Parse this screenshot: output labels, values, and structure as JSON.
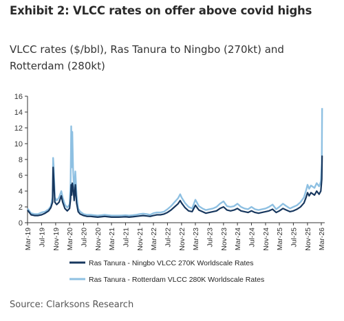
{
  "header": {
    "exhibit_title": "Exhibit 2: VLCC rates on offer above covid highs",
    "subtitle": "VLCC rates ($/bbl), Ras Tanura to Ningbo (270kt) and Rotterdam (280kt)"
  },
  "footer": {
    "source": "Source: Clarksons Research"
  },
  "chart_data": {
    "type": "line",
    "title": "",
    "xlabel": "",
    "ylabel": "",
    "ylim": [
      0,
      16
    ],
    "yticks": [
      0,
      2,
      4,
      6,
      8,
      10,
      12,
      14,
      16
    ],
    "xlim": [
      "2019-03-01",
      "2026-03-31"
    ],
    "x_tick_labels": [
      "Mar-19",
      "Jul-19",
      "Nov-19",
      "Mar-20",
      "Jul-20",
      "Nov-20",
      "Mar-21",
      "Jul-21",
      "Nov-21",
      "Mar-22",
      "Jul-22",
      "Nov-22",
      "Mar-23",
      "Jul-23",
      "Nov-23",
      "Mar-24",
      "Jul-24",
      "Nov-24",
      "Mar-25",
      "Jul-25",
      "Nov-25",
      "Mar-26"
    ],
    "grid": false,
    "legend_position": "bottom",
    "series": [
      {
        "name": "Ras Tanura - Ningbo VLCC 270K Worldscale Rates",
        "color": "#17375e",
        "points": [
          [
            "2019-03-01",
            1.6
          ],
          [
            "2019-04-01",
            1.0
          ],
          [
            "2019-05-01",
            0.9
          ],
          [
            "2019-06-01",
            0.9
          ],
          [
            "2019-07-01",
            1.0
          ],
          [
            "2019-08-01",
            1.2
          ],
          [
            "2019-09-01",
            1.5
          ],
          [
            "2019-09-20",
            1.9
          ],
          [
            "2019-10-05",
            2.6
          ],
          [
            "2019-10-10",
            7.0
          ],
          [
            "2019-10-15",
            5.5
          ],
          [
            "2019-10-25",
            2.6
          ],
          [
            "2019-11-10",
            2.3
          ],
          [
            "2019-12-01",
            2.6
          ],
          [
            "2019-12-20",
            3.4
          ],
          [
            "2020-01-01",
            2.6
          ],
          [
            "2020-01-20",
            1.8
          ],
          [
            "2020-02-10",
            1.5
          ],
          [
            "2020-03-01",
            1.8
          ],
          [
            "2020-03-10",
            3.0
          ],
          [
            "2020-03-15",
            4.8
          ],
          [
            "2020-03-20",
            3.5
          ],
          [
            "2020-03-25",
            5.0
          ],
          [
            "2020-04-01",
            4.5
          ],
          [
            "2020-04-10",
            2.8
          ],
          [
            "2020-04-20",
            4.8
          ],
          [
            "2020-05-01",
            2.5
          ],
          [
            "2020-05-15",
            1.4
          ],
          [
            "2020-06-01",
            1.1
          ],
          [
            "2020-07-01",
            0.9
          ],
          [
            "2020-08-01",
            0.8
          ],
          [
            "2020-09-01",
            0.8
          ],
          [
            "2020-10-01",
            0.75
          ],
          [
            "2020-11-01",
            0.7
          ],
          [
            "2020-12-01",
            0.75
          ],
          [
            "2021-01-01",
            0.8
          ],
          [
            "2021-02-01",
            0.75
          ],
          [
            "2021-03-01",
            0.7
          ],
          [
            "2021-04-01",
            0.7
          ],
          [
            "2021-05-01",
            0.7
          ],
          [
            "2021-06-01",
            0.72
          ],
          [
            "2021-07-01",
            0.75
          ],
          [
            "2021-08-01",
            0.7
          ],
          [
            "2021-09-01",
            0.75
          ],
          [
            "2021-10-01",
            0.8
          ],
          [
            "2021-11-01",
            0.85
          ],
          [
            "2021-12-01",
            0.9
          ],
          [
            "2022-01-01",
            0.85
          ],
          [
            "2022-02-01",
            0.8
          ],
          [
            "2022-03-01",
            0.9
          ],
          [
            "2022-04-01",
            1.0
          ],
          [
            "2022-05-01",
            1.0
          ],
          [
            "2022-06-01",
            1.1
          ],
          [
            "2022-07-01",
            1.3
          ],
          [
            "2022-08-01",
            1.6
          ],
          [
            "2022-09-01",
            2.0
          ],
          [
            "2022-10-01",
            2.4
          ],
          [
            "2022-10-20",
            2.8
          ],
          [
            "2022-11-01",
            2.5
          ],
          [
            "2022-12-01",
            1.9
          ],
          [
            "2023-01-01",
            1.5
          ],
          [
            "2023-02-01",
            1.4
          ],
          [
            "2023-03-01",
            2.2
          ],
          [
            "2023-04-01",
            1.6
          ],
          [
            "2023-05-01",
            1.4
          ],
          [
            "2023-06-01",
            1.2
          ],
          [
            "2023-07-01",
            1.3
          ],
          [
            "2023-08-01",
            1.4
          ],
          [
            "2023-09-01",
            1.5
          ],
          [
            "2023-10-01",
            1.8
          ],
          [
            "2023-11-01",
            2.0
          ],
          [
            "2023-12-01",
            1.6
          ],
          [
            "2024-01-01",
            1.5
          ],
          [
            "2024-02-01",
            1.6
          ],
          [
            "2024-03-01",
            1.8
          ],
          [
            "2024-04-01",
            1.5
          ],
          [
            "2024-05-01",
            1.4
          ],
          [
            "2024-06-01",
            1.3
          ],
          [
            "2024-07-01",
            1.5
          ],
          [
            "2024-08-01",
            1.3
          ],
          [
            "2024-09-01",
            1.2
          ],
          [
            "2024-10-01",
            1.3
          ],
          [
            "2024-11-01",
            1.4
          ],
          [
            "2024-12-01",
            1.5
          ],
          [
            "2025-01-01",
            1.7
          ],
          [
            "2025-02-01",
            1.3
          ],
          [
            "2025-03-01",
            1.5
          ],
          [
            "2025-04-01",
            1.8
          ],
          [
            "2025-05-01",
            1.6
          ],
          [
            "2025-06-01",
            1.4
          ],
          [
            "2025-07-01",
            1.5
          ],
          [
            "2025-08-01",
            1.7
          ],
          [
            "2025-09-01",
            2.0
          ],
          [
            "2025-10-01",
            2.5
          ],
          [
            "2025-10-20",
            3.2
          ],
          [
            "2025-11-01",
            3.8
          ],
          [
            "2025-11-15",
            3.4
          ],
          [
            "2025-12-01",
            3.8
          ],
          [
            "2026-01-01",
            3.5
          ],
          [
            "2026-01-20",
            4.0
          ],
          [
            "2026-02-10",
            3.6
          ],
          [
            "2026-02-25",
            4.0
          ],
          [
            "2026-03-05",
            5.5
          ],
          [
            "2026-03-08",
            8.5
          ]
        ]
      },
      {
        "name": "Ras Tanura - Rotterdam VLCC 280K Worldscale Rates",
        "color": "#8ec0e2",
        "points": [
          [
            "2019-03-01",
            1.8
          ],
          [
            "2019-04-01",
            1.2
          ],
          [
            "2019-05-01",
            1.1
          ],
          [
            "2019-06-01",
            1.1
          ],
          [
            "2019-07-01",
            1.3
          ],
          [
            "2019-08-01",
            1.4
          ],
          [
            "2019-09-01",
            1.7
          ],
          [
            "2019-09-20",
            2.1
          ],
          [
            "2019-10-05",
            3.2
          ],
          [
            "2019-10-10",
            8.2
          ],
          [
            "2019-10-15",
            7.0
          ],
          [
            "2019-10-25",
            3.2
          ],
          [
            "2019-11-10",
            2.8
          ],
          [
            "2019-12-01",
            3.2
          ],
          [
            "2019-12-20",
            4.0
          ],
          [
            "2020-01-01",
            3.2
          ],
          [
            "2020-01-20",
            2.3
          ],
          [
            "2020-02-10",
            1.9
          ],
          [
            "2020-03-01",
            2.3
          ],
          [
            "2020-03-10",
            5.0
          ],
          [
            "2020-03-15",
            12.2
          ],
          [
            "2020-03-20",
            7.0
          ],
          [
            "2020-03-25",
            11.5
          ],
          [
            "2020-04-01",
            6.5
          ],
          [
            "2020-04-10",
            3.8
          ],
          [
            "2020-04-20",
            6.5
          ],
          [
            "2020-05-01",
            3.5
          ],
          [
            "2020-05-15",
            1.8
          ],
          [
            "2020-06-01",
            1.4
          ],
          [
            "2020-07-01",
            1.1
          ],
          [
            "2020-08-01",
            1.0
          ],
          [
            "2020-09-01",
            1.0
          ],
          [
            "2020-10-01",
            0.95
          ],
          [
            "2020-11-01",
            0.9
          ],
          [
            "2020-12-01",
            0.95
          ],
          [
            "2021-01-01",
            1.0
          ],
          [
            "2021-02-01",
            0.95
          ],
          [
            "2021-03-01",
            0.9
          ],
          [
            "2021-04-01",
            0.9
          ],
          [
            "2021-05-01",
            0.9
          ],
          [
            "2021-06-01",
            0.92
          ],
          [
            "2021-07-01",
            0.95
          ],
          [
            "2021-08-01",
            0.9
          ],
          [
            "2021-09-01",
            0.95
          ],
          [
            "2021-10-01",
            1.0
          ],
          [
            "2021-11-01",
            1.1
          ],
          [
            "2021-12-01",
            1.15
          ],
          [
            "2022-01-01",
            1.1
          ],
          [
            "2022-02-01",
            1.0
          ],
          [
            "2022-03-01",
            1.2
          ],
          [
            "2022-04-01",
            1.3
          ],
          [
            "2022-05-01",
            1.3
          ],
          [
            "2022-06-01",
            1.4
          ],
          [
            "2022-07-01",
            1.7
          ],
          [
            "2022-08-01",
            2.1
          ],
          [
            "2022-09-01",
            2.6
          ],
          [
            "2022-10-01",
            3.1
          ],
          [
            "2022-10-20",
            3.6
          ],
          [
            "2022-11-01",
            3.2
          ],
          [
            "2022-12-01",
            2.5
          ],
          [
            "2023-01-01",
            2.0
          ],
          [
            "2023-02-01",
            1.8
          ],
          [
            "2023-03-01",
            2.9
          ],
          [
            "2023-04-01",
            2.1
          ],
          [
            "2023-05-01",
            1.8
          ],
          [
            "2023-06-01",
            1.6
          ],
          [
            "2023-07-01",
            1.7
          ],
          [
            "2023-08-01",
            1.8
          ],
          [
            "2023-09-01",
            2.0
          ],
          [
            "2023-10-01",
            2.4
          ],
          [
            "2023-11-01",
            2.7
          ],
          [
            "2023-12-01",
            2.1
          ],
          [
            "2024-01-01",
            2.0
          ],
          [
            "2024-02-01",
            2.1
          ],
          [
            "2024-03-01",
            2.4
          ],
          [
            "2024-04-01",
            2.0
          ],
          [
            "2024-05-01",
            1.8
          ],
          [
            "2024-06-01",
            1.7
          ],
          [
            "2024-07-01",
            2.0
          ],
          [
            "2024-08-01",
            1.7
          ],
          [
            "2024-09-01",
            1.6
          ],
          [
            "2024-10-01",
            1.7
          ],
          [
            "2024-11-01",
            1.8
          ],
          [
            "2024-12-01",
            2.0
          ],
          [
            "2025-01-01",
            2.3
          ],
          [
            "2025-02-01",
            1.7
          ],
          [
            "2025-03-01",
            2.0
          ],
          [
            "2025-04-01",
            2.4
          ],
          [
            "2025-05-01",
            2.1
          ],
          [
            "2025-06-01",
            1.8
          ],
          [
            "2025-07-01",
            2.0
          ],
          [
            "2025-08-01",
            2.2
          ],
          [
            "2025-09-01",
            2.6
          ],
          [
            "2025-10-01",
            3.2
          ],
          [
            "2025-10-20",
            4.1
          ],
          [
            "2025-11-01",
            4.8
          ],
          [
            "2025-11-15",
            4.3
          ],
          [
            "2025-12-01",
            4.7
          ],
          [
            "2026-01-01",
            4.4
          ],
          [
            "2026-01-20",
            5.0
          ],
          [
            "2026-02-10",
            4.6
          ],
          [
            "2026-02-25",
            5.2
          ],
          [
            "2026-03-05",
            7.5
          ],
          [
            "2026-03-08",
            14.5
          ]
        ]
      }
    ]
  }
}
